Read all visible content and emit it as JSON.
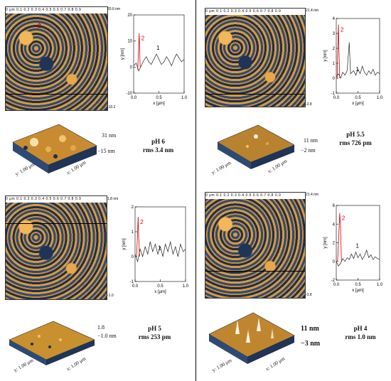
{
  "panels": [
    {
      "key": "ph6",
      "ruler": "0 μm  0.1  0.2  0.3  0.4  0.5  0.6  0.7  0.8  0.9",
      "z_top": "20.6 nm",
      "z_bottom": "-10.2",
      "tag": "2",
      "caption_ph": "pH 6",
      "caption_rms": "rms 3.4 nm",
      "surf_top": "31 nm",
      "surf_bottom": "−15 nm",
      "axis_y": "y: 1.00 μm",
      "axis_x": "x: 1.00 μm",
      "plot": {
        "xlabel": "x [μm]",
        "ylabel": "y [nm]",
        "yticks": [
          "20",
          "10",
          "0",
          "-10"
        ],
        "xticks": [
          "0.0",
          "0.5",
          "1.0"
        ],
        "ylim": [
          -10,
          20
        ],
        "label1": "1",
        "label2": "2",
        "profile1": [
          [
            0.0,
            0.5
          ],
          [
            0.05,
            1.5
          ],
          [
            0.1,
            -1.5
          ],
          [
            0.15,
            0.5
          ],
          [
            0.2,
            2.5
          ],
          [
            0.25,
            4
          ],
          [
            0.3,
            2
          ],
          [
            0.35,
            1
          ],
          [
            0.4,
            3
          ],
          [
            0.45,
            5
          ],
          [
            0.5,
            3
          ],
          [
            0.55,
            1
          ],
          [
            0.6,
            2
          ],
          [
            0.65,
            4
          ],
          [
            0.7,
            2.5
          ],
          [
            0.75,
            0.5
          ],
          [
            0.8,
            3
          ],
          [
            0.85,
            5
          ],
          [
            0.9,
            3.5
          ],
          [
            0.95,
            2
          ],
          [
            1.0,
            3
          ]
        ],
        "profile2": [
          [
            0.08,
            -1
          ],
          [
            0.1,
            8
          ],
          [
            0.11,
            13
          ],
          [
            0.12,
            6
          ],
          [
            0.13,
            0
          ]
        ]
      }
    },
    {
      "key": "ph55",
      "ruler": "0 μm  0.1  0.2  0.3  0.4  0.5  0.6  0.7  0.8  0.9",
      "z_top": "21.4 nm",
      "z_bottom": "-3.8",
      "tag": "",
      "caption_ph": "pH 5.5",
      "caption_rms": "rms 726 pm",
      "surf_top": "11 nm",
      "surf_bottom": "−2 nm",
      "axis_y": "y: 1.00 μm",
      "axis_x": "x: 1.00 μm",
      "plot": {
        "xlabel": "x [μm]",
        "ylabel": "y [nm]",
        "yticks": [
          "4",
          "3",
          "2",
          "1",
          "0",
          "-1"
        ],
        "xticks": [
          "0.0",
          "0.5",
          "1.0"
        ],
        "ylim": [
          -1,
          4
        ],
        "label1": "1",
        "label2": "2",
        "profile1": [
          [
            0.0,
            0.1
          ],
          [
            0.05,
            0.3
          ],
          [
            0.1,
            0.0
          ],
          [
            0.15,
            0.4
          ],
          [
            0.2,
            0.2
          ],
          [
            0.25,
            0.5
          ],
          [
            0.3,
            2.4
          ],
          [
            0.33,
            0.3
          ],
          [
            0.4,
            0.5
          ],
          [
            0.45,
            0.2
          ],
          [
            0.5,
            0.6
          ],
          [
            0.55,
            0.3
          ],
          [
            0.6,
            0.8
          ],
          [
            0.65,
            0.4
          ],
          [
            0.7,
            0.2
          ],
          [
            0.75,
            0.5
          ],
          [
            0.8,
            0.3
          ],
          [
            0.85,
            0.6
          ],
          [
            0.9,
            0.2
          ],
          [
            0.95,
            0.4
          ],
          [
            1.0,
            0.3
          ]
        ],
        "profile2": [
          [
            0.02,
            0
          ],
          [
            0.04,
            2.5
          ],
          [
            0.05,
            3.6
          ],
          [
            0.06,
            2
          ],
          [
            0.08,
            0
          ]
        ]
      }
    },
    {
      "key": "ph5",
      "ruler": "0 μm  0.1  0.2  0.3  0.4  0.5  0.6  0.7  0.8  0.9",
      "z_top": "1.8 nm",
      "z_bottom": "-1.0",
      "tag": "",
      "caption_ph": "pH 5",
      "caption_rms": "rms 253 pm",
      "surf_top": "1.8",
      "surf_bottom": "−1.0 nm",
      "axis_y": "y: 1.00 μm",
      "axis_x": "x: 1.00 μm",
      "plot": {
        "xlabel": "x [μm]",
        "ylabel": "y [nm]",
        "yticks": [
          "2",
          "1",
          "0",
          "-1"
        ],
        "xticks": [
          "0.0",
          "0.5",
          "1.0"
        ],
        "ylim": [
          -1,
          2
        ],
        "label1": "1",
        "label2": "2",
        "profile1": [
          [
            0.0,
            0.1
          ],
          [
            0.05,
            -0.2
          ],
          [
            0.1,
            0.3
          ],
          [
            0.15,
            0.0
          ],
          [
            0.2,
            0.4
          ],
          [
            0.25,
            0.1
          ],
          [
            0.3,
            0.6
          ],
          [
            0.35,
            0.2
          ],
          [
            0.4,
            0.5
          ],
          [
            0.45,
            0.1
          ],
          [
            0.5,
            0.4
          ],
          [
            0.55,
            0.0
          ],
          [
            0.6,
            0.5
          ],
          [
            0.65,
            0.2
          ],
          [
            0.7,
            0.6
          ],
          [
            0.75,
            0.1
          ],
          [
            0.8,
            0.4
          ],
          [
            0.85,
            0.0
          ],
          [
            0.9,
            0.5
          ],
          [
            0.95,
            0.2
          ],
          [
            1.0,
            0.3
          ]
        ],
        "profile2": [
          [
            0.03,
            0.0
          ],
          [
            0.05,
            1.0
          ],
          [
            0.06,
            1.6
          ],
          [
            0.07,
            0.8
          ],
          [
            0.09,
            0.0
          ]
        ]
      }
    },
    {
      "key": "ph4",
      "ruler": "0 μm  0.1  0.2  0.3  0.4  0.5  0.6  0.7  0.8  0.9",
      "z_top": "21.4 nm",
      "z_bottom": "-3.8",
      "tag": "",
      "caption_ph": "pH 4",
      "caption_rms": "rms 1.0 nm",
      "surf_top": "11 nm",
      "surf_bottom": "−3 nm",
      "axis_y": "y: 1.00 μm",
      "axis_x": "x: 1.00 μm",
      "plot": {
        "xlabel": "x [μm]",
        "ylabel": "y [nm]",
        "yticks": [
          "6",
          "4",
          "2",
          "0",
          "-2"
        ],
        "xticks": [
          "0.0",
          "0.5",
          "1.0"
        ],
        "ylim": [
          -2,
          6
        ],
        "label1": "1",
        "label2": "2",
        "profile1": [
          [
            0.0,
            0.0
          ],
          [
            0.05,
            -0.5
          ],
          [
            0.1,
            -0.2
          ],
          [
            0.15,
            0.3
          ],
          [
            0.2,
            0.0
          ],
          [
            0.25,
            0.4
          ],
          [
            0.3,
            0.2
          ],
          [
            0.35,
            0.8
          ],
          [
            0.4,
            0.3
          ],
          [
            0.45,
            1.0
          ],
          [
            0.5,
            0.4
          ],
          [
            0.55,
            0.8
          ],
          [
            0.6,
            0.2
          ],
          [
            0.65,
            0.6
          ],
          [
            0.7,
            1.2
          ],
          [
            0.75,
            0.4
          ],
          [
            0.8,
            0.7
          ],
          [
            0.85,
            0.2
          ],
          [
            0.9,
            0.5
          ],
          [
            0.95,
            0.3
          ],
          [
            1.0,
            0.2
          ]
        ],
        "profile2": [
          [
            0.03,
            0.0
          ],
          [
            0.06,
            3.0
          ],
          [
            0.08,
            5.2
          ],
          [
            0.1,
            3.5
          ],
          [
            0.12,
            0.0
          ]
        ]
      }
    }
  ]
}
